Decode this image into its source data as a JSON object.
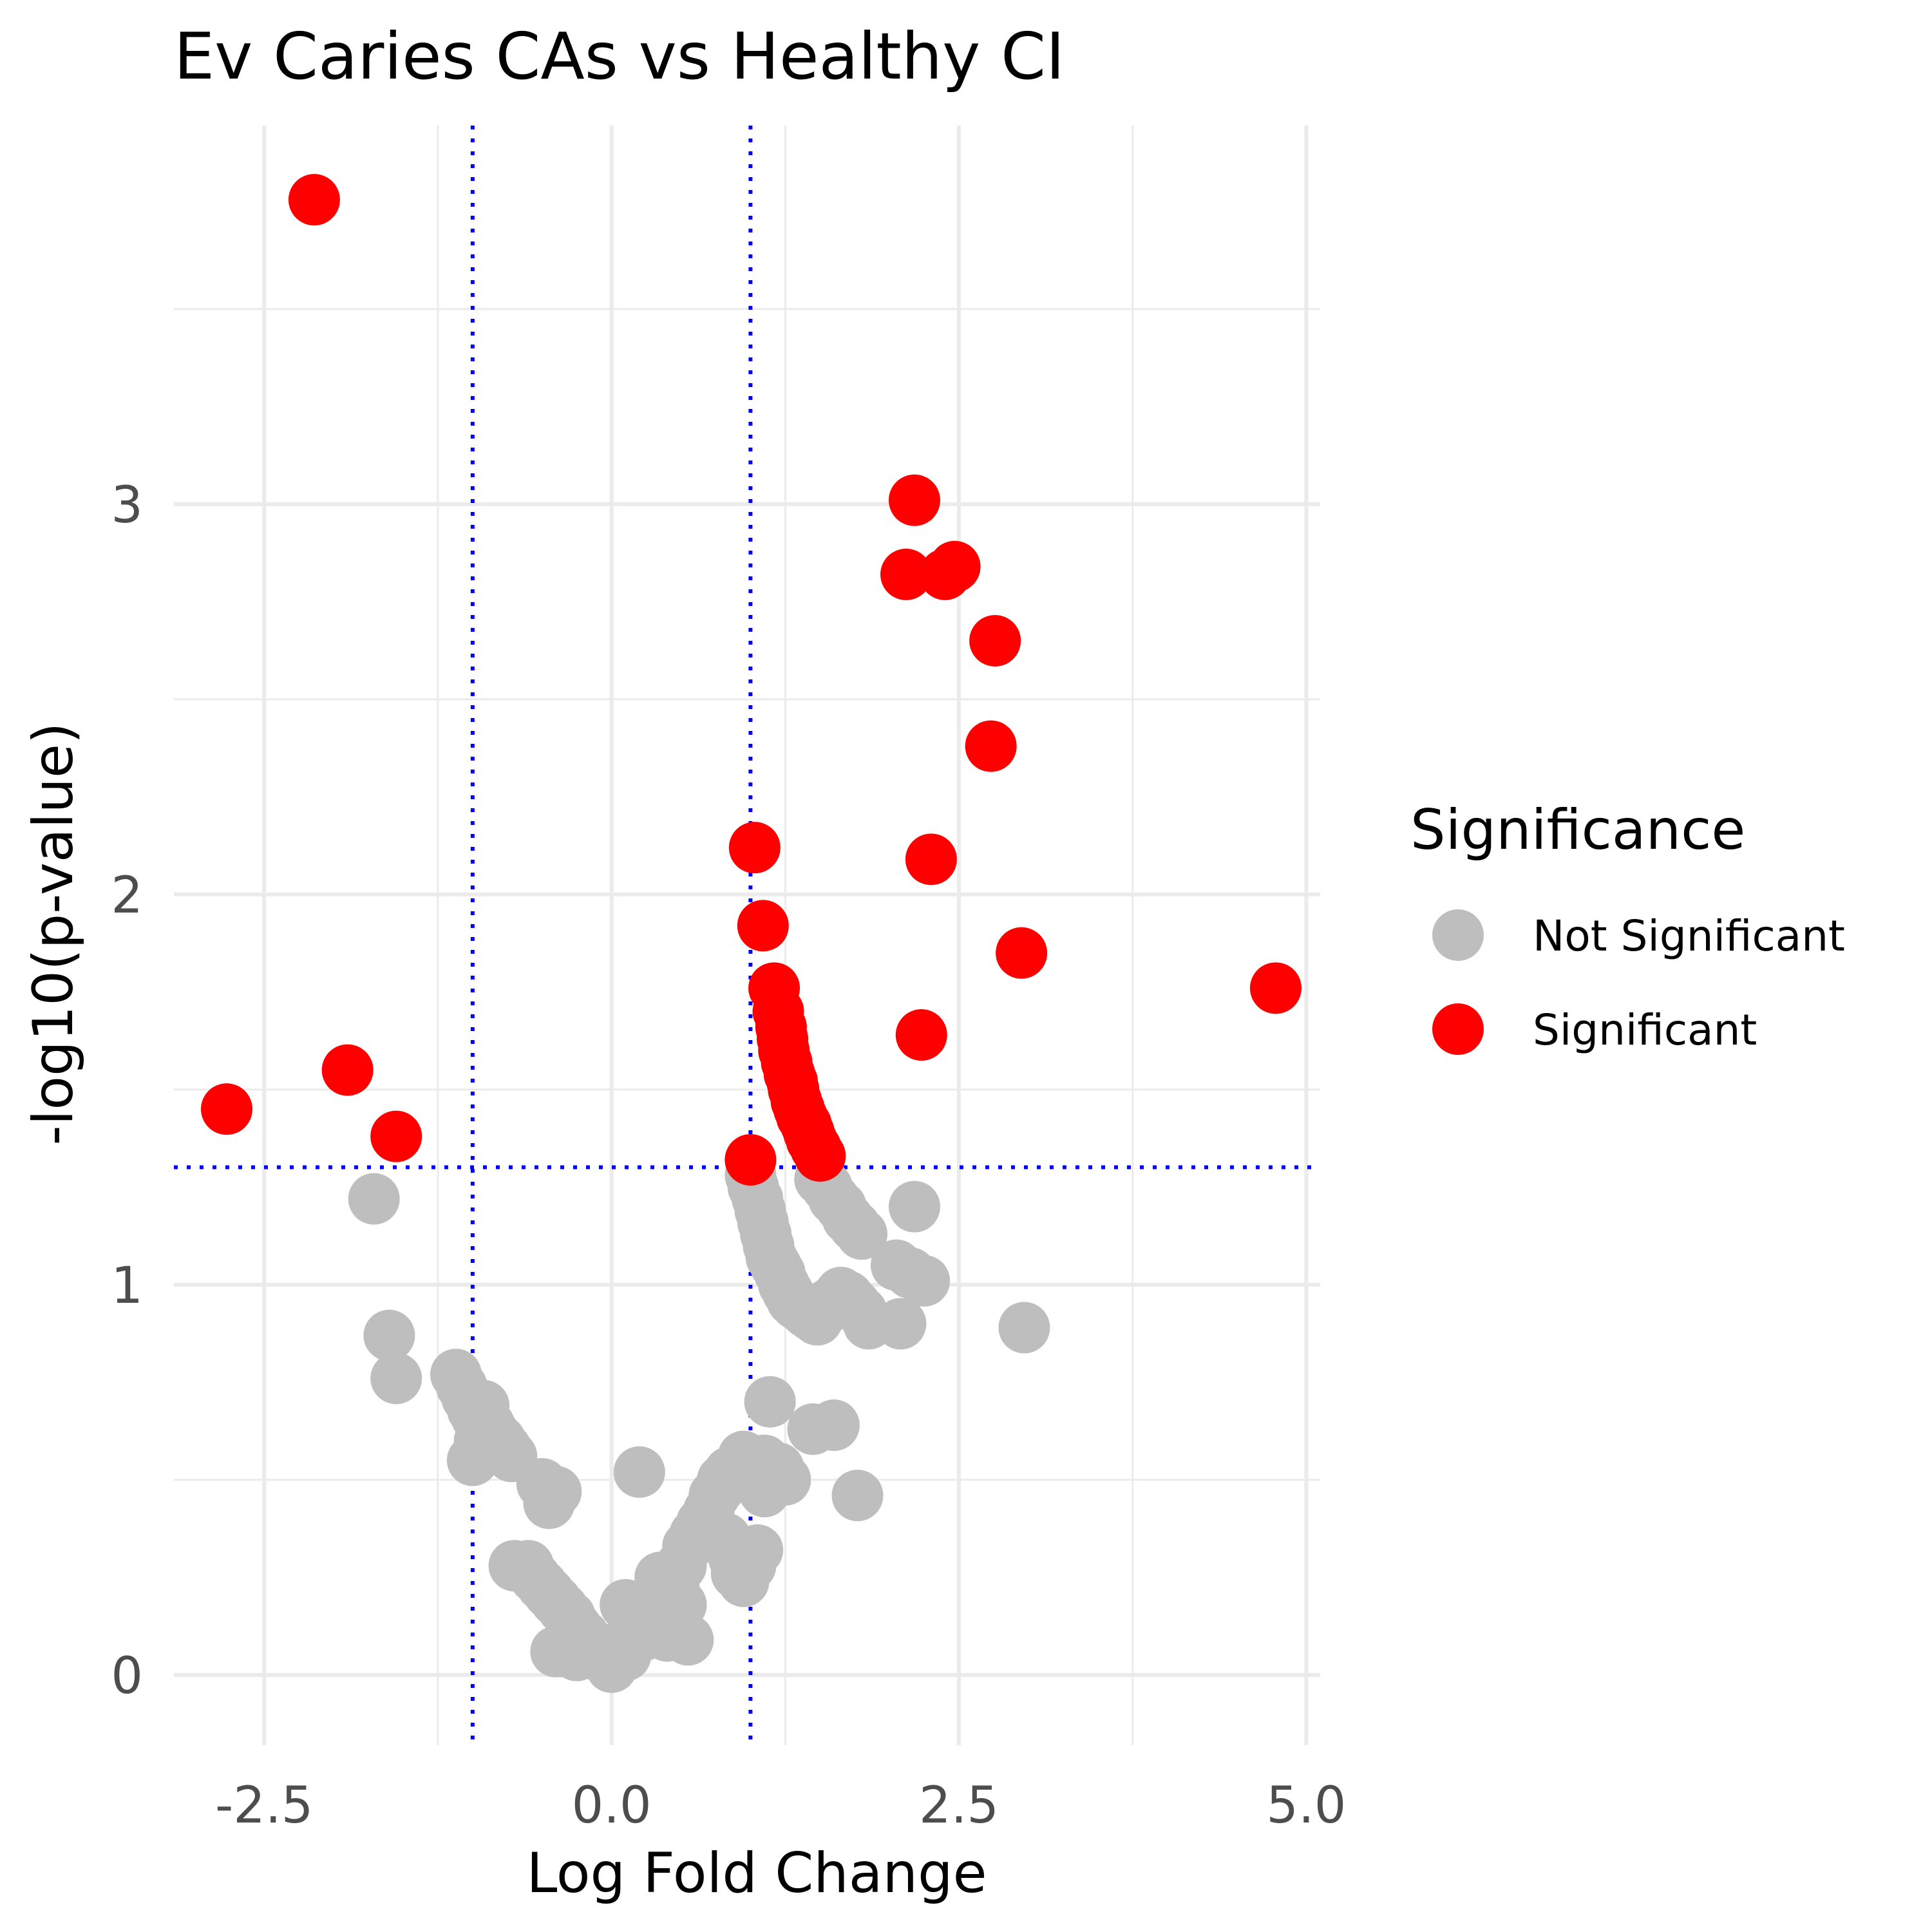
{
  "chart_data": {
    "type": "scatter",
    "title": "Ev Caries CAs vs Healthy CI",
    "xlabel": "Log Fold Change",
    "ylabel": "-log10(p-value)",
    "xlim": [
      -3.15,
      5.1
    ],
    "ylim": [
      -0.18,
      3.97
    ],
    "x_ticks": [
      {
        "value": -2.5,
        "label": "-2.5"
      },
      {
        "value": 0.0,
        "label": "0.0"
      },
      {
        "value": 2.5,
        "label": "2.5"
      },
      {
        "value": 5.0,
        "label": "5.0"
      }
    ],
    "y_ticks": [
      {
        "value": 0,
        "label": "0"
      },
      {
        "value": 1,
        "label": "1"
      },
      {
        "value": 2,
        "label": "2"
      },
      {
        "value": 3,
        "label": "3"
      }
    ],
    "minor_x": [
      -1.25,
      1.25,
      3.75
    ],
    "minor_y": [
      0.5,
      1.5,
      2.5,
      3.5
    ],
    "grid": true,
    "threshold_lines": {
      "x": [
        -1,
        1
      ],
      "y": [
        1.301
      ],
      "color": "#0000ff",
      "style": "dotted"
    },
    "legend": {
      "title": "Significance",
      "position": "right",
      "items": [
        {
          "label": "Not Significant",
          "color": "#bebebe"
        },
        {
          "label": "Significant",
          "color": "#ff0000"
        }
      ]
    },
    "series": [
      {
        "color": "#bebebe",
        "points": [
          [
            -1.71,
            1.22
          ],
          [
            -1.6,
            0.87
          ],
          [
            -1.55,
            0.76
          ],
          [
            -1.12,
            0.77
          ],
          [
            -1.08,
            0.74
          ],
          [
            -1.04,
            0.71
          ],
          [
            -1.0,
            0.68
          ],
          [
            -0.97,
            0.66
          ],
          [
            -0.92,
            0.69
          ],
          [
            -0.88,
            0.64
          ],
          [
            -0.85,
            0.62
          ],
          [
            -0.8,
            0.6
          ],
          [
            -0.76,
            0.58
          ],
          [
            -0.72,
            0.56
          ],
          [
            -0.95,
            0.6
          ],
          [
            -1.0,
            0.55
          ],
          [
            -0.5,
            0.49
          ],
          [
            -0.45,
            0.44
          ],
          [
            -0.4,
            0.47
          ],
          [
            -0.7,
            0.28
          ],
          [
            -0.6,
            0.28
          ],
          [
            -0.55,
            0.25
          ],
          [
            -0.5,
            0.23
          ],
          [
            -0.45,
            0.21
          ],
          [
            -0.4,
            0.19
          ],
          [
            -0.35,
            0.17
          ],
          [
            -0.3,
            0.15
          ],
          [
            -0.25,
            0.12
          ],
          [
            -0.2,
            0.1
          ],
          [
            -0.15,
            0.08
          ],
          [
            -0.1,
            0.06
          ],
          [
            -0.05,
            0.04
          ],
          [
            0.0,
            0.02
          ],
          [
            0.05,
            0.04
          ],
          [
            0.1,
            0.05
          ],
          [
            -0.4,
            0.06
          ],
          [
            -0.35,
            0.06
          ],
          [
            -0.3,
            0.07
          ],
          [
            -0.25,
            0.05
          ],
          [
            0.12,
            0.09
          ],
          [
            0.18,
            0.12
          ],
          [
            0.22,
            0.1
          ],
          [
            0.3,
            0.12
          ],
          [
            0.35,
            0.15
          ],
          [
            0.4,
            0.1
          ],
          [
            0.45,
            0.14
          ],
          [
            0.5,
            0.18
          ],
          [
            0.55,
            0.09
          ],
          [
            0.1,
            0.18
          ],
          [
            0.2,
            0.16
          ],
          [
            0.35,
            0.25
          ],
          [
            0.45,
            0.22
          ],
          [
            0.5,
            0.28
          ],
          [
            0.55,
            0.33
          ],
          [
            0.6,
            0.36
          ],
          [
            0.65,
            0.39
          ],
          [
            0.7,
            0.42
          ],
          [
            0.74,
            0.46
          ],
          [
            0.8,
            0.5
          ],
          [
            0.78,
            0.48
          ],
          [
            0.82,
            0.35
          ],
          [
            0.88,
            0.3
          ],
          [
            0.9,
            0.26
          ],
          [
            0.95,
            0.24
          ],
          [
            1.0,
            0.28
          ],
          [
            1.05,
            0.32
          ],
          [
            0.85,
            0.52
          ],
          [
            0.95,
            0.56
          ],
          [
            1.1,
            0.55
          ],
          [
            1.15,
            0.5
          ],
          [
            1.2,
            0.53
          ],
          [
            1.25,
            0.5
          ],
          [
            1.1,
            0.47
          ],
          [
            0.2,
            0.52
          ],
          [
            1.14,
            0.7
          ],
          [
            1.45,
            0.63
          ],
          [
            1.6,
            0.64
          ],
          [
            1.77,
            0.46
          ],
          [
            1.0,
            1.28
          ],
          [
            1.02,
            1.25
          ],
          [
            1.05,
            1.22
          ],
          [
            1.07,
            1.19
          ],
          [
            1.09,
            1.16
          ],
          [
            1.11,
            1.13
          ],
          [
            1.13,
            1.1
          ],
          [
            1.15,
            1.07
          ],
          [
            1.18,
            1.05
          ],
          [
            1.21,
            1.03
          ],
          [
            1.24,
            1.0
          ],
          [
            1.27,
            0.98
          ],
          [
            1.3,
            0.96
          ],
          [
            1.33,
            0.95
          ],
          [
            1.37,
            0.94
          ],
          [
            1.4,
            0.93
          ],
          [
            1.44,
            0.92
          ],
          [
            1.48,
            0.91
          ],
          [
            1.52,
            0.93
          ],
          [
            1.56,
            0.95
          ],
          [
            1.6,
            0.96
          ],
          [
            1.65,
            0.98
          ],
          [
            1.7,
            0.97
          ],
          [
            1.75,
            0.95
          ],
          [
            1.8,
            0.93
          ],
          [
            1.85,
            0.9
          ],
          [
            2.08,
            0.9
          ],
          [
            1.5,
            1.27
          ],
          [
            1.55,
            1.25
          ],
          [
            1.6,
            1.22
          ],
          [
            1.65,
            1.2
          ],
          [
            1.7,
            1.17
          ],
          [
            1.75,
            1.15
          ],
          [
            1.8,
            1.13
          ],
          [
            2.18,
            1.2
          ],
          [
            2.05,
            1.05
          ],
          [
            2.15,
            1.03
          ],
          [
            2.25,
            1.01
          ],
          [
            2.97,
            0.89
          ]
        ]
      },
      {
        "color": "#ff0000",
        "points": [
          [
            -2.14,
            3.78
          ],
          [
            -2.77,
            1.45
          ],
          [
            -1.9,
            1.55
          ],
          [
            -1.55,
            1.38
          ],
          [
            2.18,
            3.01
          ],
          [
            2.12,
            2.82
          ],
          [
            2.4,
            2.82
          ],
          [
            2.47,
            2.84
          ],
          [
            2.76,
            2.65
          ],
          [
            2.73,
            2.38
          ],
          [
            2.3,
            2.09
          ],
          [
            2.95,
            1.85
          ],
          [
            4.78,
            1.76
          ],
          [
            2.23,
            1.64
          ],
          [
            1.03,
            2.12
          ],
          [
            1.09,
            1.92
          ],
          [
            1.17,
            1.76
          ],
          [
            1.2,
            1.7
          ],
          [
            1.22,
            1.66
          ],
          [
            1.23,
            1.63
          ],
          [
            1.24,
            1.6
          ],
          [
            1.26,
            1.57
          ],
          [
            1.28,
            1.54
          ],
          [
            1.3,
            1.52
          ],
          [
            1.31,
            1.5
          ],
          [
            1.33,
            1.47
          ],
          [
            1.35,
            1.45
          ],
          [
            1.37,
            1.43
          ],
          [
            1.4,
            1.41
          ],
          [
            1.42,
            1.39
          ],
          [
            1.44,
            1.37
          ],
          [
            1.47,
            1.35
          ],
          [
            1.5,
            1.33
          ],
          [
            1.0,
            1.32
          ]
        ]
      }
    ]
  }
}
